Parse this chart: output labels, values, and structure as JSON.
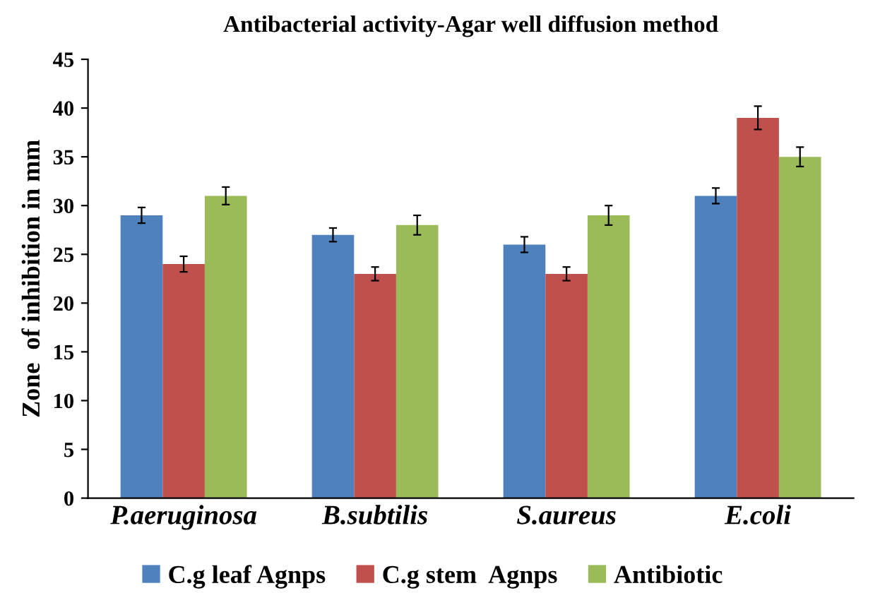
{
  "chart_data": {
    "type": "bar",
    "title": "Antibacterial activity-Agar well diffusion method",
    "ylabel": "Zone  of inhibition in mm",
    "categories": [
      "P.aeruginosa",
      "B.subtilis",
      "S.aureus",
      "E.coli"
    ],
    "series": [
      {
        "name": "C.g leaf Agnps",
        "color": "#4f81bd",
        "values": [
          29,
          27,
          26,
          31
        ],
        "errors": [
          0.8,
          0.7,
          0.8,
          0.8
        ]
      },
      {
        "name": "C.g stem  Agnps",
        "color": "#c0504d",
        "values": [
          24,
          23,
          23,
          39
        ],
        "errors": [
          0.8,
          0.7,
          0.7,
          1.2
        ]
      },
      {
        "name": "Antibiotic",
        "color": "#9bbb59",
        "values": [
          31,
          28,
          29,
          35
        ],
        "errors": [
          0.9,
          1.0,
          1.0,
          1.0
        ]
      }
    ],
    "ylim": [
      0,
      45
    ],
    "yticks": [
      0,
      5,
      10,
      15,
      20,
      25,
      30,
      35,
      40,
      45
    ],
    "grid": false,
    "legend": "bottom"
  }
}
